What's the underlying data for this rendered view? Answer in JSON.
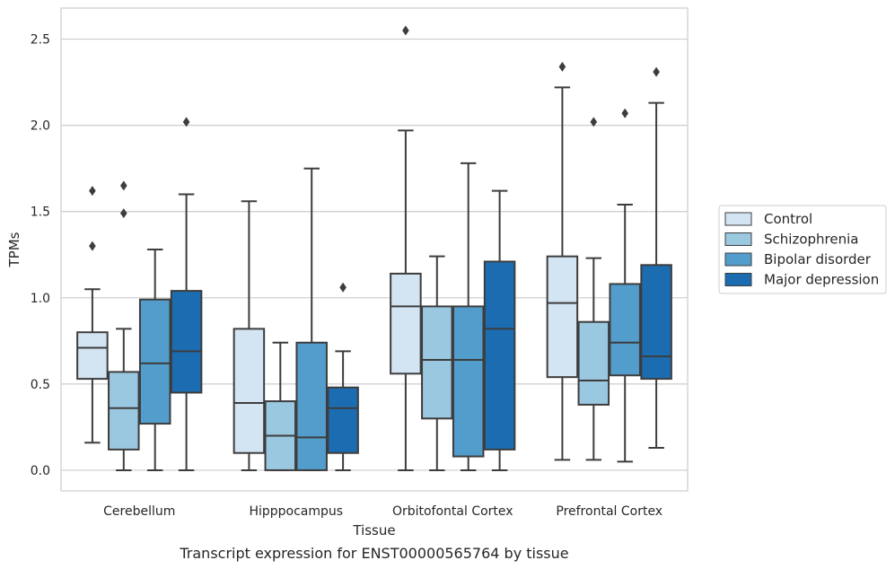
{
  "caption": "Transcript expression for ENST00000565764 by tissue",
  "chart_data": {
    "type": "boxplot",
    "xlabel": "Tissue",
    "ylabel": "TPMs",
    "ylim": [
      -0.12,
      2.68
    ],
    "yticks": [
      "0.0",
      "0.5",
      "1.0",
      "1.5",
      "2.0",
      "2.5"
    ],
    "grid": "horizontal",
    "legend_position": "right",
    "categories": [
      "Cerebellum",
      "Hipppocampus",
      "Orbitofontal Cortex",
      "Prefrontal Cortex"
    ],
    "series": [
      {
        "name": "Control",
        "color": "#d3e4f3",
        "boxes": [
          {
            "whislo": 0.16,
            "q1": 0.53,
            "med": 0.71,
            "q3": 0.8,
            "whishi": 1.05,
            "fliers": [
              1.3,
              1.62
            ]
          },
          {
            "whislo": 0.0,
            "q1": 0.1,
            "med": 0.39,
            "q3": 0.82,
            "whishi": 1.56,
            "fliers": []
          },
          {
            "whislo": 0.0,
            "q1": 0.56,
            "med": 0.95,
            "q3": 1.14,
            "whishi": 1.97,
            "fliers": [
              2.55
            ]
          },
          {
            "whislo": 0.06,
            "q1": 0.54,
            "med": 0.97,
            "q3": 1.24,
            "whishi": 2.22,
            "fliers": [
              2.34
            ]
          }
        ]
      },
      {
        "name": "Schizophrenia",
        "color": "#9ac8e0",
        "boxes": [
          {
            "whislo": 0.0,
            "q1": 0.12,
            "med": 0.36,
            "q3": 0.57,
            "whishi": 0.82,
            "fliers": [
              1.49,
              1.65
            ]
          },
          {
            "whislo": 0.0,
            "q1": 0.0,
            "med": 0.2,
            "q3": 0.4,
            "whishi": 0.74,
            "fliers": []
          },
          {
            "whislo": 0.0,
            "q1": 0.3,
            "med": 0.64,
            "q3": 0.95,
            "whishi": 1.24,
            "fliers": []
          },
          {
            "whislo": 0.06,
            "q1": 0.38,
            "med": 0.52,
            "q3": 0.86,
            "whishi": 1.23,
            "fliers": [
              2.02
            ]
          }
        ]
      },
      {
        "name": "Bipolar disorder",
        "color": "#529dcc",
        "boxes": [
          {
            "whislo": 0.0,
            "q1": 0.27,
            "med": 0.62,
            "q3": 0.99,
            "whishi": 1.28,
            "fliers": []
          },
          {
            "whislo": 0.0,
            "q1": 0.0,
            "med": 0.19,
            "q3": 0.74,
            "whishi": 1.75,
            "fliers": []
          },
          {
            "whislo": 0.0,
            "q1": 0.08,
            "med": 0.64,
            "q3": 0.95,
            "whishi": 1.78,
            "fliers": []
          },
          {
            "whislo": 0.05,
            "q1": 0.55,
            "med": 0.74,
            "q3": 1.08,
            "whishi": 1.54,
            "fliers": [
              2.07
            ]
          }
        ]
      },
      {
        "name": "Major depression",
        "color": "#1c6cb1",
        "boxes": [
          {
            "whislo": 0.0,
            "q1": 0.45,
            "med": 0.69,
            "q3": 1.04,
            "whishi": 1.6,
            "fliers": [
              2.02
            ]
          },
          {
            "whislo": 0.0,
            "q1": 0.1,
            "med": 0.36,
            "q3": 0.48,
            "whishi": 0.69,
            "fliers": [
              1.06
            ]
          },
          {
            "whislo": 0.0,
            "q1": 0.12,
            "med": 0.82,
            "q3": 1.21,
            "whishi": 1.62,
            "fliers": []
          },
          {
            "whislo": 0.13,
            "q1": 0.53,
            "med": 0.66,
            "q3": 1.19,
            "whishi": 2.13,
            "fliers": [
              2.31
            ]
          }
        ]
      }
    ]
  }
}
